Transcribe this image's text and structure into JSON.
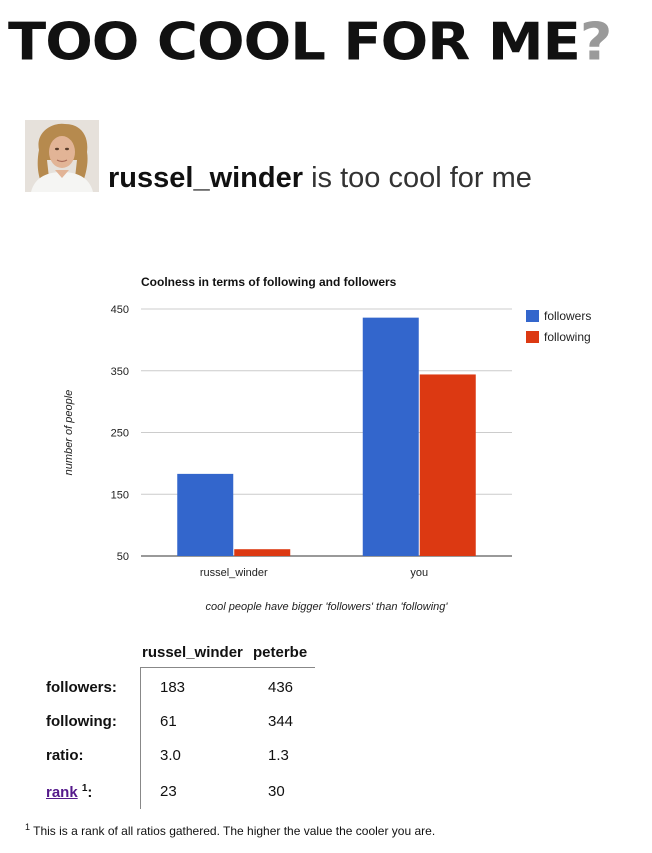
{
  "site": {
    "title": "Too Cool For Me",
    "title_mark": "?"
  },
  "profile": {
    "username": "russel_winder",
    "headline_suffix": "is too cool for me",
    "avatar_icon": "user-avatar-photo"
  },
  "chart_data": {
    "type": "bar",
    "title": "Coolness in terms of following and followers",
    "xlabel": "cool people have bigger 'followers' than 'following'",
    "ylabel": "number of people",
    "ylim": [
      50,
      450
    ],
    "yticks": [
      50,
      150,
      250,
      350,
      450
    ],
    "grid": true,
    "legend_position": "right",
    "categories": [
      "russel_winder",
      "you"
    ],
    "series": [
      {
        "name": "followers",
        "color": "#3366cc",
        "values": [
          183,
          436
        ]
      },
      {
        "name": "following",
        "color": "#dc3912",
        "values": [
          61,
          344
        ]
      }
    ]
  },
  "stats": {
    "columns": [
      "russel_winder",
      "peterbe"
    ],
    "rows": [
      {
        "label": "followers:",
        "values": [
          "183",
          "436"
        ]
      },
      {
        "label": "following:",
        "values": [
          "61",
          "344"
        ]
      },
      {
        "label": "ratio:",
        "values": [
          "3.0",
          "1.3"
        ]
      },
      {
        "label": "rank",
        "label_suffix": ":",
        "footnote_mark": "1",
        "values": [
          "23",
          "30"
        ]
      }
    ]
  },
  "footnote": {
    "mark": "1",
    "text": "This is a rank of all ratios gathered. The higher the value the cooler you are."
  }
}
